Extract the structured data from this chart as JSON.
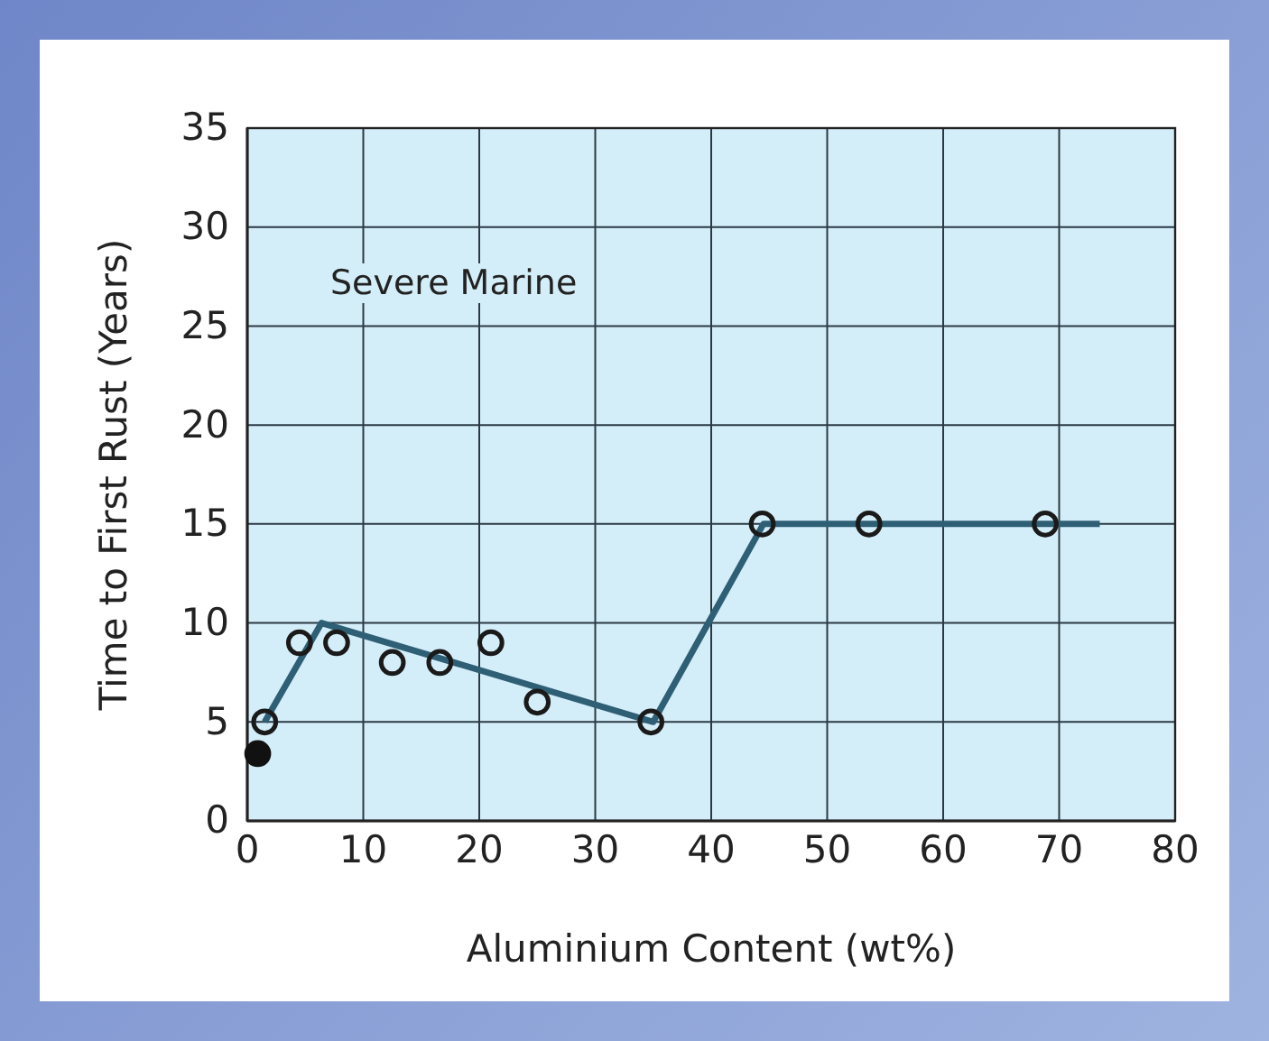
{
  "chart_data": {
    "type": "scatter",
    "xlabel": "Aluminium Content (wt%)",
    "ylabel": "Time to First Rust (Years)",
    "annotations": [
      "Severe Marine"
    ],
    "xlim": [
      0,
      80
    ],
    "xticks": [
      0,
      10,
      20,
      30,
      40,
      50,
      60,
      70,
      80
    ],
    "ylim": [
      0,
      35
    ],
    "yticks": [
      0,
      5,
      10,
      15,
      20,
      25,
      30,
      35
    ],
    "grid": true,
    "series": [
      {
        "type": "line",
        "color": "#2e5f75",
        "x": [
          1.5,
          6.4,
          35,
          44.5,
          73.5
        ],
        "values": [
          5,
          10,
          5,
          15,
          15
        ]
      },
      {
        "marker": "circle",
        "color": "#1a1a1a",
        "x": [
          1.5,
          4.5,
          7.7,
          12.5,
          16.6,
          21,
          25,
          34.8,
          44.4,
          53.6,
          68.8
        ],
        "values": [
          5,
          9,
          9,
          8,
          8,
          9,
          6,
          5,
          15,
          15,
          15
        ]
      },
      {
        "marker": "circle",
        "color": "#111111",
        "x": [
          0.9
        ],
        "values": [
          3.4
        ]
      }
    ]
  }
}
